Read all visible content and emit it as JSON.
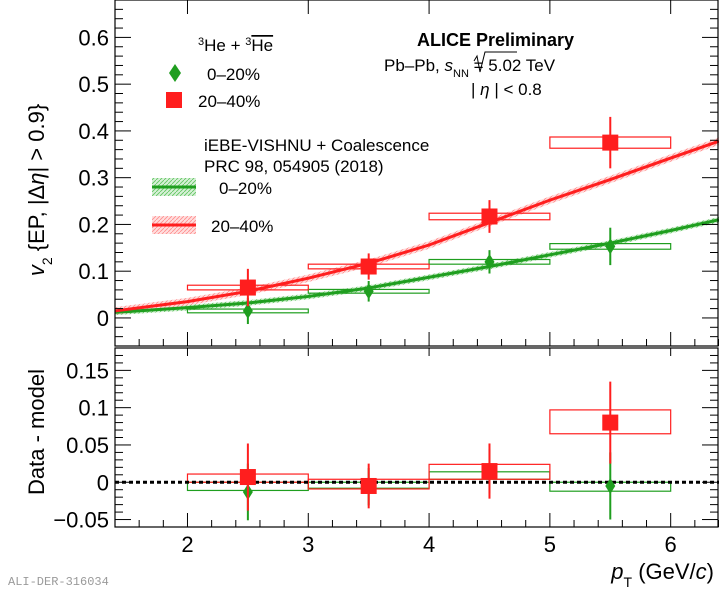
{
  "chart_data": [
    {
      "panel": "top",
      "type": "scatter",
      "ylabel": "v2 {EP, |Δη| > 0.9}",
      "ylim": [
        -0.06,
        0.68
      ],
      "xlim": [
        1.4,
        6.4
      ],
      "yticks": [
        0,
        0.1,
        0.2,
        0.3,
        0.4,
        0.5,
        0.6
      ],
      "ytick_labels": [
        "0",
        "0.1",
        "0.2",
        "0.3",
        "0.4",
        "0.5",
        "0.6"
      ],
      "legend_title": "3He + 3He-bar",
      "series": [
        {
          "name": "0–20%",
          "color": "#1f9e1f",
          "marker": "diamond",
          "x": [
            2.5,
            3.5,
            4.5,
            5.5
          ],
          "y": [
            0.015,
            0.057,
            0.12,
            0.153
          ],
          "stat_err": [
            0.028,
            0.022,
            0.025,
            0.04
          ],
          "sys_box_xwidth": [
            1.0,
            1.0,
            1.0,
            1.0
          ],
          "sys_box_half_height": [
            0.004,
            0.004,
            0.005,
            0.006
          ]
        },
        {
          "name": "20–40%",
          "color": "#ff1e1e",
          "marker": "square",
          "x": [
            2.5,
            3.5,
            4.5,
            5.5
          ],
          "y": [
            0.065,
            0.11,
            0.217,
            0.375
          ],
          "stat_err": [
            0.04,
            0.028,
            0.035,
            0.055
          ],
          "sys_box_xwidth": [
            1.0,
            1.0,
            1.0,
            1.0
          ],
          "sys_box_half_height": [
            0.005,
            0.005,
            0.007,
            0.012
          ]
        }
      ],
      "model": {
        "title_line1": "iEBE-VISHNU + Coalescence",
        "title_line2": "PRC 98, 054905 (2018)",
        "curves": [
          {
            "name": "0–20%",
            "color": "#1f9e1f",
            "x": [
              1.4,
              2.0,
              2.5,
              3.0,
              3.5,
              4.0,
              4.5,
              5.0,
              5.5,
              6.0,
              6.4
            ],
            "y": [
              0.012,
              0.022,
              0.032,
              0.046,
              0.064,
              0.087,
              0.11,
              0.135,
              0.16,
              0.187,
              0.21
            ],
            "band_half_width": 0.006
          },
          {
            "name": "20–40%",
            "color": "#ff1e1e",
            "x": [
              1.4,
              2.0,
              2.5,
              3.0,
              3.5,
              4.0,
              4.5,
              5.0,
              5.5,
              6.0,
              6.4
            ],
            "y": [
              0.015,
              0.035,
              0.057,
              0.085,
              0.117,
              0.156,
              0.204,
              0.252,
              0.296,
              0.342,
              0.378
            ],
            "band_half_width": 0.008
          }
        ]
      },
      "annotations": {
        "line1": "ALICE Preliminary",
        "line2_prefix": "Pb–Pb, ",
        "line2_suffix": " = 5.02 TeV",
        "line3_suffix": " < 0.8"
      }
    },
    {
      "panel": "bottom",
      "type": "scatter",
      "ylabel": "Data - model",
      "ylim": [
        -0.06,
        0.18
      ],
      "xlim": [
        1.4,
        6.4
      ],
      "yticks": [
        -0.05,
        0,
        0.05,
        0.1,
        0.15
      ],
      "ytick_labels": [
        "−0.05",
        "0",
        "0.05",
        "0.1",
        "0.15"
      ],
      "reference_line_y": 0,
      "series": [
        {
          "name": "0–20%",
          "color": "#1f9e1f",
          "marker": "diamond",
          "x": [
            2.5,
            3.5,
            4.5,
            5.5
          ],
          "y": [
            -0.013,
            -0.006,
            0.015,
            -0.005
          ],
          "stat_err": [
            0.038,
            0.025,
            0.03,
            0.045
          ],
          "sys_box_xwidth": [
            1.0,
            1.0,
            1.0,
            1.0
          ],
          "sys_box_y": [
            [
              -0.011,
              0.0
            ],
            [
              -0.008,
              0.0
            ],
            [
              0.004,
              0.014
            ],
            [
              -0.012,
              0.0
            ]
          ]
        },
        {
          "name": "20–40%",
          "color": "#ff1e1e",
          "marker": "square",
          "x": [
            2.5,
            3.5,
            4.5,
            5.5
          ],
          "y": [
            0.007,
            -0.005,
            0.015,
            0.08
          ],
          "stat_err": [
            0.045,
            0.03,
            0.037,
            0.055
          ],
          "sys_box_xwidth": [
            1.0,
            1.0,
            1.0,
            1.0
          ],
          "sys_box_y": [
            [
              0.0,
              0.011
            ],
            [
              -0.009,
              0.004
            ],
            [
              0.004,
              0.024
            ],
            [
              0.065,
              0.097
            ]
          ]
        }
      ],
      "xticks": [
        2,
        3,
        4,
        5,
        6
      ],
      "xtick_labels": [
        "2",
        "3",
        "4",
        "5",
        "6"
      ],
      "xlabel": "(GeV/c)"
    }
  ],
  "watermark": "ALI-DER-316034"
}
